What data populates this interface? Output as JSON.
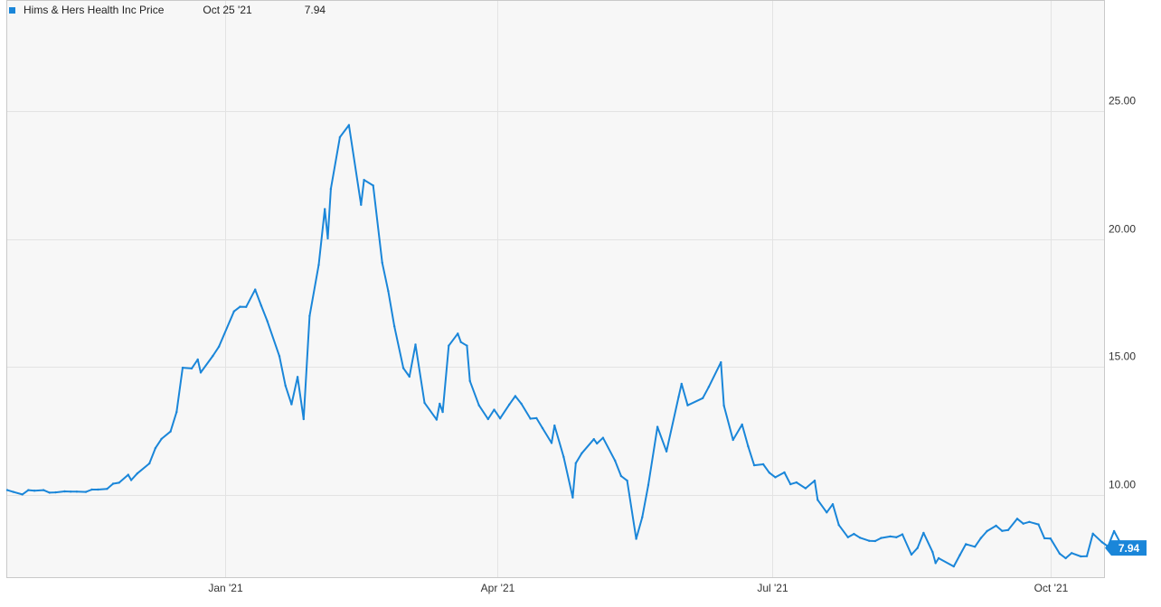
{
  "chart_data": {
    "type": "line",
    "title": "",
    "xlabel": "",
    "ylabel": "",
    "ylim": [
      6.8,
      29.3
    ],
    "y_ticks": [
      "10.00",
      "15.00",
      "20.00",
      "25.00"
    ],
    "x_ticks": [
      "Jan '21",
      "Apr '21",
      "Jul '21",
      "Oct '21"
    ],
    "grid": true,
    "legend": {
      "placement": "top-left",
      "series_name": "Hims & Hers Health Inc Price",
      "date": "Oct 25 '21",
      "value": "7.94"
    },
    "last_value_label": "7.94",
    "series": [
      {
        "name": "Hims & Hers Health Inc Price",
        "color": "#1a86d9",
        "points": [
          [
            "2020-10-21",
            10.2
          ],
          [
            "2020-10-23",
            10.13
          ],
          [
            "2020-10-26",
            10.03
          ],
          [
            "2020-10-28",
            10.2
          ],
          [
            "2020-10-30",
            10.18
          ],
          [
            "2020-11-02",
            10.2
          ],
          [
            "2020-11-04",
            10.1
          ],
          [
            "2020-11-06",
            10.11
          ],
          [
            "2020-11-09",
            10.15
          ],
          [
            "2020-11-11",
            10.14
          ],
          [
            "2020-11-13",
            10.14
          ],
          [
            "2020-11-16",
            10.13
          ],
          [
            "2020-11-18",
            10.22
          ],
          [
            "2020-11-20",
            10.22
          ],
          [
            "2020-11-23",
            10.25
          ],
          [
            "2020-11-25",
            10.45
          ],
          [
            "2020-11-27",
            10.49
          ],
          [
            "2020-11-30",
            10.8
          ],
          [
            "2020-12-01",
            10.59
          ],
          [
            "2020-12-03",
            10.85
          ],
          [
            "2020-12-07",
            11.24
          ],
          [
            "2020-12-09",
            11.84
          ],
          [
            "2020-12-11",
            12.2
          ],
          [
            "2020-12-14",
            12.49
          ],
          [
            "2020-12-16",
            13.25
          ],
          [
            "2020-12-18",
            14.98
          ],
          [
            "2020-12-21",
            14.95
          ],
          [
            "2020-12-23",
            15.3
          ],
          [
            "2020-12-24",
            14.79
          ],
          [
            "2020-12-28",
            15.44
          ],
          [
            "2020-12-30",
            15.8
          ],
          [
            "2021-01-04",
            17.18
          ],
          [
            "2021-01-06",
            17.36
          ],
          [
            "2021-01-08",
            17.35
          ],
          [
            "2021-01-11",
            18.03
          ],
          [
            "2021-01-13",
            17.4
          ],
          [
            "2021-01-15",
            16.8
          ],
          [
            "2021-01-19",
            15.43
          ],
          [
            "2021-01-21",
            14.28
          ],
          [
            "2021-01-23",
            13.55
          ],
          [
            "2021-01-25",
            14.62
          ],
          [
            "2021-01-27",
            12.97
          ],
          [
            "2021-01-29",
            17.0
          ],
          [
            "2021-02-01",
            19.0
          ],
          [
            "2021-02-03",
            21.17
          ],
          [
            "2021-02-04",
            20.03
          ],
          [
            "2021-02-05",
            21.96
          ],
          [
            "2021-02-08",
            23.98
          ],
          [
            "2021-02-11",
            24.45
          ],
          [
            "2021-02-15",
            21.34
          ],
          [
            "2021-02-16",
            22.31
          ],
          [
            "2021-02-19",
            22.09
          ],
          [
            "2021-02-22",
            19.08
          ],
          [
            "2021-02-24",
            17.97
          ],
          [
            "2021-02-26",
            16.6
          ],
          [
            "2021-03-01",
            14.96
          ],
          [
            "2021-03-03",
            14.63
          ],
          [
            "2021-03-05",
            15.88
          ],
          [
            "2021-03-08",
            13.61
          ],
          [
            "2021-03-12",
            12.95
          ],
          [
            "2021-03-13",
            13.57
          ],
          [
            "2021-03-14",
            13.25
          ],
          [
            "2021-03-16",
            15.84
          ],
          [
            "2021-03-19",
            16.31
          ],
          [
            "2021-03-20",
            15.98
          ],
          [
            "2021-03-22",
            15.84
          ],
          [
            "2021-03-23",
            14.46
          ],
          [
            "2021-03-26",
            13.51
          ],
          [
            "2021-03-29",
            12.97
          ],
          [
            "2021-03-31",
            13.34
          ],
          [
            "2021-04-02",
            13.0
          ],
          [
            "2021-04-05",
            13.54
          ],
          [
            "2021-04-07",
            13.87
          ],
          [
            "2021-04-09",
            13.57
          ],
          [
            "2021-04-12",
            12.99
          ],
          [
            "2021-04-14",
            13.01
          ],
          [
            "2021-04-16",
            12.62
          ],
          [
            "2021-04-19",
            12.04
          ],
          [
            "2021-04-20",
            12.72
          ],
          [
            "2021-04-23",
            11.49
          ],
          [
            "2021-04-26",
            9.91
          ],
          [
            "2021-04-27",
            11.25
          ],
          [
            "2021-04-29",
            11.64
          ],
          [
            "2021-05-03",
            12.19
          ],
          [
            "2021-05-04",
            12.02
          ],
          [
            "2021-05-06",
            12.24
          ],
          [
            "2021-05-10",
            11.35
          ],
          [
            "2021-05-12",
            10.75
          ],
          [
            "2021-05-14",
            10.57
          ],
          [
            "2021-05-17",
            8.3
          ],
          [
            "2021-05-19",
            9.14
          ],
          [
            "2021-05-21",
            10.4
          ],
          [
            "2021-05-24",
            12.67
          ],
          [
            "2021-05-27",
            11.71
          ],
          [
            "2021-05-31",
            13.84
          ],
          [
            "2021-06-01",
            14.35
          ],
          [
            "2021-06-03",
            13.51
          ],
          [
            "2021-06-08",
            13.79
          ],
          [
            "2021-06-10",
            14.23
          ],
          [
            "2021-06-14",
            15.19
          ],
          [
            "2021-06-15",
            13.5
          ],
          [
            "2021-06-18",
            12.16
          ],
          [
            "2021-06-21",
            12.76
          ],
          [
            "2021-06-23",
            11.91
          ],
          [
            "2021-06-25",
            11.17
          ],
          [
            "2021-06-28",
            11.21
          ],
          [
            "2021-06-30",
            10.88
          ],
          [
            "2021-07-02",
            10.7
          ],
          [
            "2021-07-05",
            10.89
          ],
          [
            "2021-07-07",
            10.43
          ],
          [
            "2021-07-09",
            10.5
          ],
          [
            "2021-07-12",
            10.27
          ],
          [
            "2021-07-15",
            10.57
          ],
          [
            "2021-07-16",
            9.82
          ],
          [
            "2021-07-19",
            9.33
          ],
          [
            "2021-07-21",
            9.65
          ],
          [
            "2021-07-23",
            8.84
          ],
          [
            "2021-07-26",
            8.36
          ],
          [
            "2021-07-28",
            8.49
          ],
          [
            "2021-07-30",
            8.34
          ],
          [
            "2021-08-02",
            8.22
          ],
          [
            "2021-08-04",
            8.21
          ],
          [
            "2021-08-06",
            8.33
          ],
          [
            "2021-08-09",
            8.39
          ],
          [
            "2021-08-11",
            8.36
          ],
          [
            "2021-08-13",
            8.47
          ],
          [
            "2021-08-16",
            7.68
          ],
          [
            "2021-08-18",
            7.94
          ],
          [
            "2021-08-20",
            8.53
          ],
          [
            "2021-08-23",
            7.78
          ],
          [
            "2021-08-24",
            7.35
          ],
          [
            "2021-08-25",
            7.54
          ],
          [
            "2021-08-30",
            7.22
          ],
          [
            "2021-09-01",
            7.66
          ],
          [
            "2021-09-03",
            8.09
          ],
          [
            "2021-09-06",
            7.99
          ],
          [
            "2021-09-08",
            8.33
          ],
          [
            "2021-09-10",
            8.6
          ],
          [
            "2021-09-13",
            8.81
          ],
          [
            "2021-09-15",
            8.61
          ],
          [
            "2021-09-17",
            8.64
          ],
          [
            "2021-09-20",
            9.08
          ],
          [
            "2021-09-22",
            8.89
          ],
          [
            "2021-09-24",
            8.96
          ],
          [
            "2021-09-27",
            8.86
          ],
          [
            "2021-09-29",
            8.32
          ],
          [
            "2021-10-01",
            8.31
          ],
          [
            "2021-10-04",
            7.72
          ],
          [
            "2021-10-06",
            7.54
          ],
          [
            "2021-10-08",
            7.74
          ],
          [
            "2021-10-11",
            7.61
          ],
          [
            "2021-10-13",
            7.62
          ],
          [
            "2021-10-15",
            8.5
          ],
          [
            "2021-10-18",
            8.17
          ],
          [
            "2021-10-20",
            8.0
          ],
          [
            "2021-10-22",
            8.6
          ],
          [
            "2021-10-25",
            7.94
          ]
        ]
      }
    ]
  }
}
